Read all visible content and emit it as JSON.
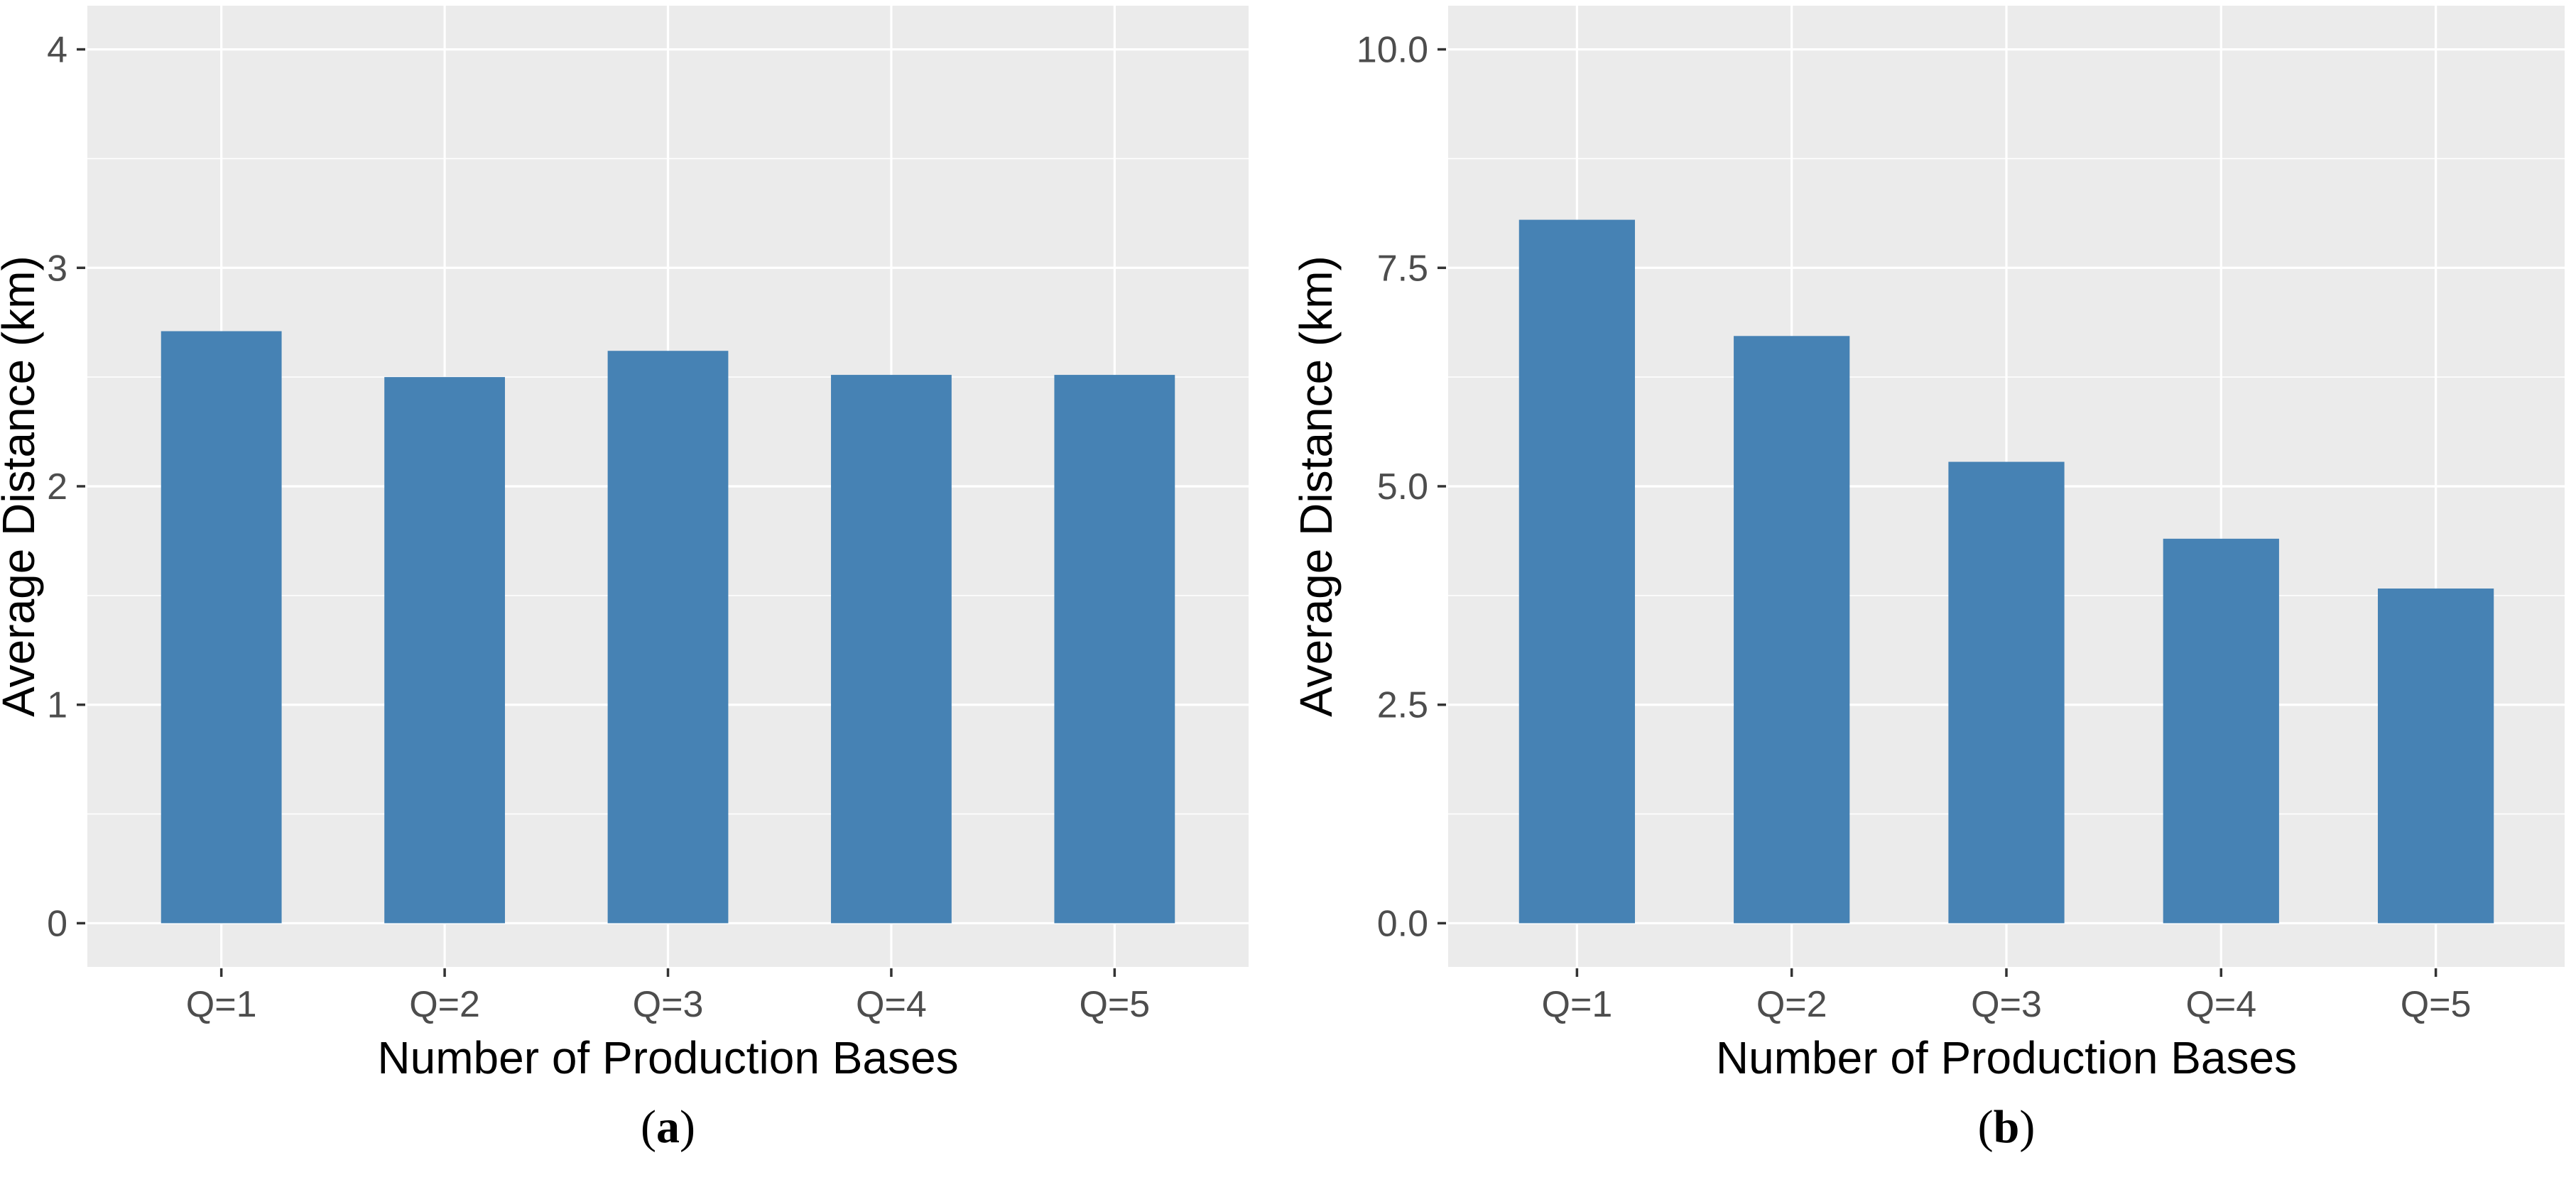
{
  "figure": {
    "background": "#ffffff",
    "panel_background": "#EBEBEB",
    "grid_major_color": "#FFFFFF",
    "grid_minor_color": "#FFFFFF",
    "bar_color": "#4682B4",
    "tick_label_color": "#4D4D4D",
    "axis_title_color": "#000000",
    "tick_mark_color": "#333333"
  },
  "chart_data": [
    {
      "id": "a",
      "type": "bar",
      "categories": [
        "Q=1",
        "Q=2",
        "Q=3",
        "Q=4",
        "Q=5"
      ],
      "values": [
        2.71,
        2.5,
        2.62,
        2.51,
        2.51
      ],
      "title": "",
      "xlabel": "Number of Production Bases",
      "ylabel": "Average Distance (km)",
      "ylim": [
        0,
        4
      ],
      "ytick_values": [
        0,
        1,
        2,
        3,
        4
      ],
      "ytick_labels": [
        "0",
        "1",
        "2",
        "3",
        "4"
      ],
      "yminor_values": [
        0.5,
        1.5,
        2.5,
        3.5
      ],
      "grid": true,
      "legend": false,
      "caption": {
        "open": "(",
        "letter": "a",
        "close": ")"
      }
    },
    {
      "id": "b",
      "type": "bar",
      "categories": [
        "Q=1",
        "Q=2",
        "Q=3",
        "Q=4",
        "Q=5"
      ],
      "values": [
        8.05,
        6.72,
        5.28,
        4.4,
        3.83
      ],
      "title": "",
      "xlabel": "Number of Production Bases",
      "ylabel": "Average Distance (km)",
      "ylim": [
        0,
        10
      ],
      "ytick_values": [
        0,
        2.5,
        5,
        7.5,
        10
      ],
      "ytick_labels": [
        "0.0",
        "2.5",
        "5.0",
        "7.5",
        "10.0"
      ],
      "yminor_values": [
        1.25,
        3.75,
        6.25,
        8.75
      ],
      "grid": true,
      "legend": false,
      "caption": {
        "open": "(",
        "letter": "b",
        "close": ")"
      }
    }
  ]
}
